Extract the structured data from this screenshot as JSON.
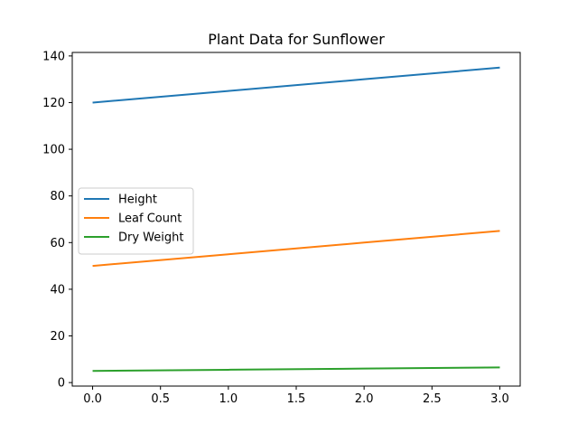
{
  "chart_data": {
    "type": "line",
    "title": "Plant Data for Sunflower",
    "xlabel": "",
    "ylabel": "",
    "x": [
      0,
      1,
      2,
      3
    ],
    "xlim": [
      -0.15,
      3.15
    ],
    "ylim": [
      -1.5,
      141.5
    ],
    "xticks": [
      0,
      0.5,
      1,
      1.5,
      2,
      2.5,
      3
    ],
    "xtick_labels": [
      "0.0",
      "0.5",
      "1.0",
      "1.5",
      "2.0",
      "2.5",
      "3.0"
    ],
    "yticks": [
      0,
      20,
      40,
      60,
      80,
      100,
      120,
      140
    ],
    "ytick_labels": [
      "0",
      "20",
      "40",
      "60",
      "80",
      "100",
      "120",
      "140"
    ],
    "grid": false,
    "legend_position": "center-left",
    "series": [
      {
        "name": "Height",
        "color": "#1f77b4",
        "values": [
          120,
          125,
          130,
          135
        ]
      },
      {
        "name": "Leaf Count",
        "color": "#ff7f0e",
        "values": [
          50,
          55,
          60,
          65
        ]
      },
      {
        "name": "Dry Weight",
        "color": "#2ca02c",
        "values": [
          5,
          5.5,
          6,
          6.5
        ]
      }
    ]
  }
}
